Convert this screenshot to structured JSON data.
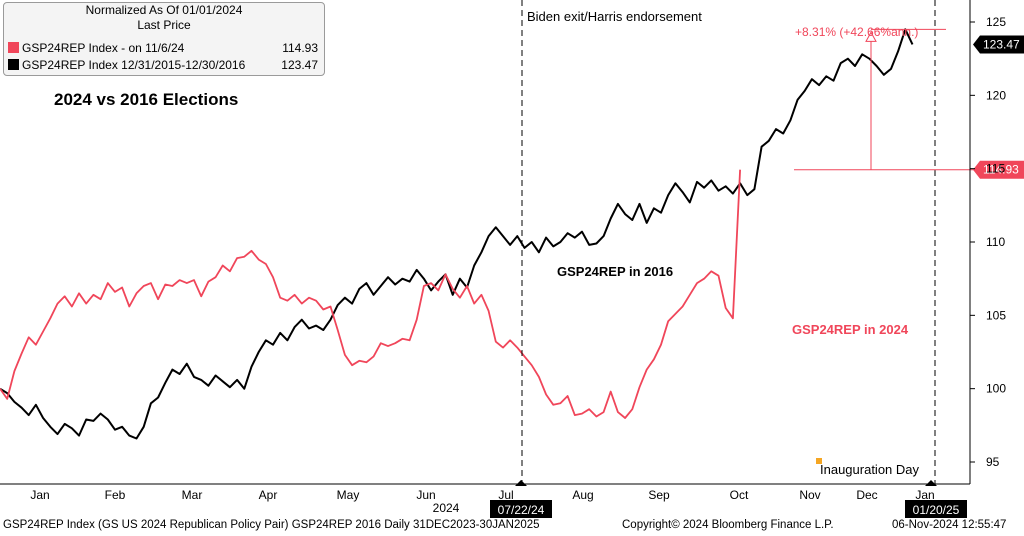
{
  "legend": {
    "title": "Normalized As Of 01/01/2024",
    "subtitle": "Last Price",
    "items": [
      {
        "label": "GSP24REP Index -   on 11/6/24",
        "value": "114.93",
        "color": "#f0465a"
      },
      {
        "label": "GSP24REP Index 12/31/2015-12/30/2016",
        "value": "123.47",
        "color": "#000000"
      }
    ]
  },
  "chart_data": {
    "type": "line",
    "title": "2024 vs 2016 Elections",
    "ylim": [
      93.5,
      126.5
    ],
    "yticks": [
      95,
      100,
      105,
      110,
      115,
      120,
      125
    ],
    "x_months": [
      "Jan",
      "Feb",
      "Mar",
      "Apr",
      "May",
      "Jun",
      "Jul",
      "Aug",
      "Sep",
      "Oct",
      "Nov",
      "Dec",
      "Jan"
    ],
    "x_year_label": "2024",
    "series": [
      {
        "name": "GSP24REP in 2016",
        "color": "#000000",
        "last_value": "123.47",
        "points": [
          [
            0,
            100
          ],
          [
            1,
            99.7
          ],
          [
            2,
            99.1
          ],
          [
            3,
            98.7
          ],
          [
            4,
            98.2
          ],
          [
            5,
            98.9
          ],
          [
            6,
            98.0
          ],
          [
            7,
            97.4
          ],
          [
            8,
            96.9
          ],
          [
            9,
            97.6
          ],
          [
            10,
            97.3
          ],
          [
            11,
            96.8
          ],
          [
            12,
            97.9
          ],
          [
            13,
            97.8
          ],
          [
            14,
            98.3
          ],
          [
            15,
            97.9
          ],
          [
            16,
            97.2
          ],
          [
            17,
            97.4
          ],
          [
            18,
            96.8
          ],
          [
            19,
            96.6
          ],
          [
            20,
            97.4
          ],
          [
            21,
            99.0
          ],
          [
            22,
            99.4
          ],
          [
            23,
            100.4
          ],
          [
            24,
            101.3
          ],
          [
            25,
            101.0
          ],
          [
            26,
            101.7
          ],
          [
            27,
            100.8
          ],
          [
            28,
            100.6
          ],
          [
            29,
            100.2
          ],
          [
            30,
            100.9
          ],
          [
            31,
            100.5
          ],
          [
            32,
            100.1
          ],
          [
            33,
            100.6
          ],
          [
            34,
            100.0
          ],
          [
            35,
            101.5
          ],
          [
            36,
            102.5
          ],
          [
            37,
            103.3
          ],
          [
            38,
            103.0
          ],
          [
            39,
            103.8
          ],
          [
            40,
            103.3
          ],
          [
            41,
            104.2
          ],
          [
            42,
            104.7
          ],
          [
            43,
            104.1
          ],
          [
            44,
            104.3
          ],
          [
            45,
            104.0
          ],
          [
            46,
            104.7
          ],
          [
            47,
            105.7
          ],
          [
            48,
            106.2
          ],
          [
            49,
            105.8
          ],
          [
            50,
            106.8
          ],
          [
            51,
            107.2
          ],
          [
            52,
            106.4
          ],
          [
            53,
            107.0
          ],
          [
            54,
            107.6
          ],
          [
            55,
            107.1
          ],
          [
            56,
            107.5
          ],
          [
            57,
            107.3
          ],
          [
            58,
            108.1
          ],
          [
            59,
            107.5
          ],
          [
            60,
            106.7
          ],
          [
            61,
            107.3
          ],
          [
            62,
            107.8
          ],
          [
            63,
            106.4
          ],
          [
            64,
            107.5
          ],
          [
            65,
            106.9
          ],
          [
            66,
            108.4
          ],
          [
            67,
            109.3
          ],
          [
            68,
            110.4
          ],
          [
            69,
            111.0
          ],
          [
            70,
            110.4
          ],
          [
            71,
            109.8
          ],
          [
            72,
            110.4
          ],
          [
            73,
            109.6
          ],
          [
            74,
            110.0
          ],
          [
            75,
            109.3
          ],
          [
            76,
            110.3
          ],
          [
            77,
            109.7
          ],
          [
            78,
            110.0
          ],
          [
            79,
            110.6
          ],
          [
            80,
            110.3
          ],
          [
            81,
            110.7
          ],
          [
            82,
            109.8
          ],
          [
            83,
            109.9
          ],
          [
            84,
            110.4
          ],
          [
            85,
            111.6
          ],
          [
            86,
            112.6
          ],
          [
            87,
            111.9
          ],
          [
            88,
            111.5
          ],
          [
            89,
            112.6
          ],
          [
            90,
            111.3
          ],
          [
            91,
            112.3
          ],
          [
            92,
            112.0
          ],
          [
            93,
            113.2
          ],
          [
            94,
            114.0
          ],
          [
            95,
            113.4
          ],
          [
            96,
            112.7
          ],
          [
            97,
            114.1
          ],
          [
            98,
            113.7
          ],
          [
            99,
            114.2
          ],
          [
            100,
            113.5
          ],
          [
            101,
            113.8
          ],
          [
            102,
            113.3
          ],
          [
            103,
            114.0
          ],
          [
            104,
            113.2
          ],
          [
            105,
            113.6
          ],
          [
            106,
            116.5
          ],
          [
            107,
            116.9
          ],
          [
            108,
            117.7
          ],
          [
            109,
            117.4
          ],
          [
            110,
            118.3
          ],
          [
            111,
            119.7
          ],
          [
            112,
            120.3
          ],
          [
            113,
            121.1
          ],
          [
            114,
            120.7
          ],
          [
            115,
            121.3
          ],
          [
            116,
            121.0
          ],
          [
            117,
            122.2
          ],
          [
            118,
            122.5
          ],
          [
            119,
            122.0
          ],
          [
            120,
            122.8
          ],
          [
            121,
            122.5
          ],
          [
            122,
            122.0
          ],
          [
            123,
            121.4
          ],
          [
            124,
            121.8
          ],
          [
            125,
            123.0
          ],
          [
            126,
            124.5
          ],
          [
            127,
            123.47
          ]
        ]
      },
      {
        "name": "GSP24REP in 2024",
        "color": "#f0465a",
        "last_value": "114.93",
        "points": [
          [
            0,
            100
          ],
          [
            1,
            99.3
          ],
          [
            2,
            101.2
          ],
          [
            3,
            102.4
          ],
          [
            4,
            103.5
          ],
          [
            5,
            103.0
          ],
          [
            6,
            103.9
          ],
          [
            7,
            104.8
          ],
          [
            8,
            105.8
          ],
          [
            9,
            106.3
          ],
          [
            10,
            105.6
          ],
          [
            11,
            106.5
          ],
          [
            12,
            105.8
          ],
          [
            13,
            106.4
          ],
          [
            14,
            106.1
          ],
          [
            15,
            107.2
          ],
          [
            16,
            106.6
          ],
          [
            17,
            106.9
          ],
          [
            18,
            105.6
          ],
          [
            19,
            106.5
          ],
          [
            20,
            107.0
          ],
          [
            21,
            107.2
          ],
          [
            22,
            106.1
          ],
          [
            23,
            107.1
          ],
          [
            24,
            107.0
          ],
          [
            25,
            107.4
          ],
          [
            26,
            107.2
          ],
          [
            27,
            107.4
          ],
          [
            28,
            106.3
          ],
          [
            29,
            107.3
          ],
          [
            30,
            107.6
          ],
          [
            31,
            108.4
          ],
          [
            32,
            108.0
          ],
          [
            33,
            108.9
          ],
          [
            34,
            109.0
          ],
          [
            35,
            109.4
          ],
          [
            36,
            108.8
          ],
          [
            37,
            108.5
          ],
          [
            38,
            107.6
          ],
          [
            39,
            106.2
          ],
          [
            40,
            106.0
          ],
          [
            41,
            106.4
          ],
          [
            42,
            105.8
          ],
          [
            43,
            106.2
          ],
          [
            44,
            106.0
          ],
          [
            45,
            105.4
          ],
          [
            46,
            105.6
          ],
          [
            47,
            104.0
          ],
          [
            48,
            102.3
          ],
          [
            49,
            101.6
          ],
          [
            50,
            101.9
          ],
          [
            51,
            101.8
          ],
          [
            52,
            102.2
          ],
          [
            53,
            103.1
          ],
          [
            54,
            102.9
          ],
          [
            55,
            103.1
          ],
          [
            56,
            103.4
          ],
          [
            57,
            103.3
          ],
          [
            58,
            104.7
          ],
          [
            59,
            107.0
          ],
          [
            60,
            107.2
          ],
          [
            61,
            106.7
          ],
          [
            62,
            107.8
          ],
          [
            63,
            106.8
          ],
          [
            64,
            106.2
          ],
          [
            65,
            107.0
          ],
          [
            66,
            105.8
          ],
          [
            67,
            106.4
          ],
          [
            68,
            105.3
          ],
          [
            69,
            103.2
          ],
          [
            70,
            102.8
          ],
          [
            71,
            103.3
          ],
          [
            72,
            102.8
          ],
          [
            73,
            102.2
          ],
          [
            74,
            101.6
          ],
          [
            75,
            100.8
          ],
          [
            76,
            99.6
          ],
          [
            77,
            98.9
          ],
          [
            78,
            99.0
          ],
          [
            79,
            99.5
          ],
          [
            80,
            98.2
          ],
          [
            81,
            98.3
          ],
          [
            82,
            98.6
          ],
          [
            83,
            98.1
          ],
          [
            84,
            98.4
          ],
          [
            85,
            99.8
          ],
          [
            86,
            98.4
          ],
          [
            87,
            98.0
          ],
          [
            88,
            98.6
          ],
          [
            89,
            100.1
          ],
          [
            90,
            101.3
          ],
          [
            91,
            102.0
          ],
          [
            92,
            103.0
          ],
          [
            93,
            104.6
          ],
          [
            94,
            105.1
          ],
          [
            95,
            105.6
          ],
          [
            96,
            106.4
          ],
          [
            97,
            107.2
          ],
          [
            98,
            107.5
          ],
          [
            99,
            108.0
          ],
          [
            100,
            107.7
          ],
          [
            101,
            105.5
          ],
          [
            102,
            104.8
          ],
          [
            103,
            114.93
          ]
        ]
      }
    ],
    "annotations": {
      "event_label": "Biden exit/Harris endorsement",
      "event_date": "07/22/24",
      "end_date": "01/20/25",
      "label_2016": "GSP24REP in 2016",
      "label_2024": "GSP24REP in 2024",
      "delta_text": "+8.31% (+42.66%ann.)",
      "inauguration_label": "Inauguration Day"
    },
    "colors": {
      "red": "#f0465a",
      "black": "#000000",
      "marker": "#f5a623"
    }
  },
  "footer": {
    "left": "GSP24REP Index (GS US 2024 Republican Policy Pair) GSP24REP 2016  Daily 31DEC2023-30JAN2025",
    "center": "Copyright© 2024 Bloomberg Finance L.P.",
    "right": "06-Nov-2024 12:55:47"
  }
}
